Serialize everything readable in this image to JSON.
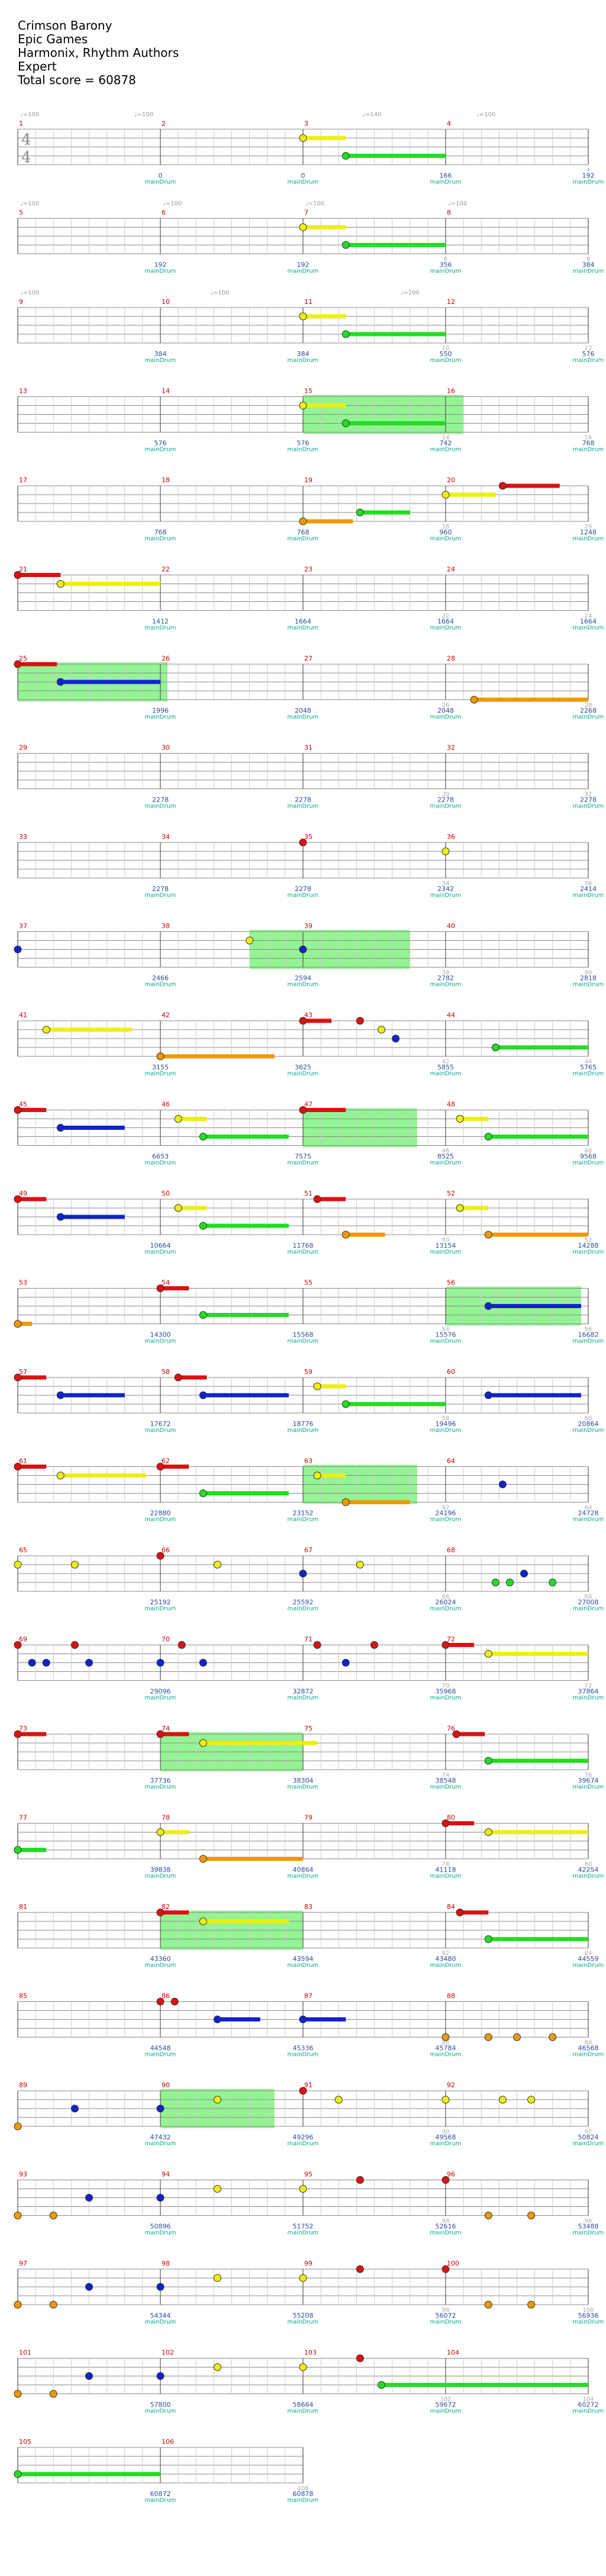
{
  "song": {
    "title": "Crimson Barony",
    "game": "Epic Games",
    "artist": "Harmonix, Rhythm Authors",
    "difficulty": "Expert",
    "total_score_label": "Total score = 60878"
  },
  "time_signature": {
    "top": "4",
    "bottom": "4"
  },
  "colors": {
    "green": "#22dd22",
    "red": "#dd1111",
    "yellow": "#eeee11",
    "blue": "#1122cc",
    "orange": "#ee9900",
    "overdrive": "#66ee66",
    "staff_line": "#888888",
    "beat_line": "#cccccc",
    "measure_number": "#cc0000"
  },
  "legend": {
    "marker_text": "mainDrum"
  },
  "rows": [
    {
      "measures": [
        1,
        2,
        3,
        4
      ],
      "tempos": [
        "♩=100",
        "♩=100",
        "",
        "♩=140",
        "♩=100"
      ],
      "multipliers": [
        "",
        "",
        "",
        "4"
      ],
      "scores": [
        "0",
        "0",
        "166",
        "192"
      ]
    },
    {
      "measures": [
        5,
        6,
        7,
        8
      ],
      "tempos": [
        "♩=100",
        "♩=100",
        "♩=100",
        "♩=100"
      ],
      "multipliers": [
        "",
        "",
        "6",
        "8"
      ],
      "scores": [
        "192",
        "192",
        "356",
        "384"
      ]
    },
    {
      "measures": [
        9,
        10,
        11,
        12
      ],
      "tempos": [
        "♩=100",
        "♩=100",
        "♩=100"
      ],
      "multipliers": [
        "",
        "",
        "10",
        "12"
      ],
      "scores": [
        "384",
        "384",
        "550",
        "576"
      ]
    },
    {
      "measures": [
        13,
        14,
        15,
        16
      ],
      "tempos": [],
      "multipliers": [
        "",
        "",
        "14",
        "16"
      ],
      "scores": [
        "576",
        "576",
        "742",
        "768"
      ]
    },
    {
      "measures": [
        17,
        18,
        19,
        20
      ],
      "tempos": [],
      "multipliers": [
        "",
        "",
        "18",
        "20"
      ],
      "scores": [
        "768",
        "768",
        "960",
        "1248"
      ]
    },
    {
      "measures": [
        21,
        22,
        23,
        24
      ],
      "tempos": [],
      "multipliers": [
        "",
        "",
        "22",
        "24"
      ],
      "scores": [
        "1412",
        "1664",
        "1664",
        "1664"
      ]
    },
    {
      "measures": [
        25,
        26,
        27,
        28
      ],
      "tempos": [],
      "multipliers": [
        "",
        "",
        "26",
        "28"
      ],
      "scores": [
        "1996",
        "2048",
        "2048",
        "2268"
      ]
    },
    {
      "measures": [
        29,
        30,
        31,
        32
      ],
      "tempos": [],
      "multipliers": [
        "",
        "",
        "30",
        "32"
      ],
      "scores": [
        "2278",
        "2278",
        "2278",
        "2278"
      ]
    },
    {
      "measures": [
        33,
        34,
        35,
        36
      ],
      "tempos": [],
      "multipliers": [
        "",
        "",
        "34",
        "36"
      ],
      "scores": [
        "2278",
        "2278",
        "2342",
        "2414"
      ]
    },
    {
      "measures": [
        37,
        38,
        39,
        40
      ],
      "tempos": [],
      "multipliers": [
        "",
        "",
        "38",
        "40"
      ],
      "scores": [
        "2466",
        "2594",
        "2782",
        "2818"
      ]
    },
    {
      "measures": [
        41,
        42,
        43,
        44
      ],
      "tempos": [],
      "multipliers": [
        "",
        "",
        "42",
        "44"
      ],
      "scores": [
        "3155",
        "3625",
        "5855",
        "5765"
      ]
    },
    {
      "measures": [
        45,
        46,
        47,
        48
      ],
      "tempos": [],
      "multipliers": [
        "",
        "",
        "46",
        "48"
      ],
      "scores": [
        "6653",
        "7575",
        "8525",
        "9568"
      ]
    },
    {
      "measures": [
        49,
        50,
        51,
        52
      ],
      "tempos": [],
      "multipliers": [
        "",
        "",
        "50",
        "52"
      ],
      "scores": [
        "10664",
        "11768",
        "13154",
        "14288"
      ]
    },
    {
      "measures": [
        53,
        54,
        55,
        56
      ],
      "tempos": [],
      "multipliers": [
        "",
        "",
        "54",
        "56"
      ],
      "scores": [
        "14300",
        "15568",
        "15576",
        "16682"
      ]
    },
    {
      "measures": [
        57,
        58,
        59,
        60
      ],
      "tempos": [],
      "multipliers": [
        "",
        "",
        "58",
        "60"
      ],
      "scores": [
        "17672",
        "18776",
        "19496",
        "20864"
      ]
    },
    {
      "measures": [
        61,
        62,
        63,
        64
      ],
      "tempos": [],
      "multipliers": [
        "",
        "",
        "62",
        "64"
      ],
      "scores": [
        "22880",
        "23152",
        "24196",
        "24728"
      ]
    },
    {
      "measures": [
        65,
        66,
        67,
        68
      ],
      "tempos": [],
      "multipliers": [
        "",
        "",
        "66",
        "68"
      ],
      "scores": [
        "25192",
        "25592",
        "26024",
        "27008"
      ]
    },
    {
      "measures": [
        69,
        70,
        71,
        72
      ],
      "tempos": [],
      "multipliers": [
        "",
        "",
        "70",
        "72"
      ],
      "scores": [
        "29096",
        "32872",
        "35968",
        "37864"
      ]
    },
    {
      "measures": [
        73,
        74,
        75,
        76
      ],
      "tempos": [],
      "multipliers": [
        "",
        "",
        "74",
        "76"
      ],
      "scores": [
        "37736",
        "38304",
        "38548",
        "39674"
      ]
    },
    {
      "measures": [
        77,
        78,
        79,
        80
      ],
      "tempos": [],
      "multipliers": [
        "",
        "",
        "78",
        "80"
      ],
      "scores": [
        "39838",
        "40864",
        "41118",
        "42254"
      ]
    },
    {
      "measures": [
        81,
        82,
        83,
        84
      ],
      "tempos": [],
      "multipliers": [
        "",
        "",
        "82",
        "84"
      ],
      "scores": [
        "43360",
        "43594",
        "43480",
        "44559"
      ]
    },
    {
      "measures": [
        85,
        86,
        87,
        88
      ],
      "tempos": [],
      "multipliers": [
        "",
        "",
        "86",
        "88"
      ],
      "scores": [
        "44548",
        "45336",
        "45784",
        "46568"
      ]
    },
    {
      "measures": [
        89,
        90,
        91,
        92
      ],
      "tempos": [],
      "multipliers": [
        "",
        "",
        "90",
        "92"
      ],
      "scores": [
        "47432",
        "49296",
        "49568",
        "50824"
      ]
    },
    {
      "measures": [
        93,
        94,
        95,
        96
      ],
      "tempos": [],
      "multipliers": [
        "",
        "",
        "94",
        "96"
      ],
      "scores": [
        "50896",
        "51752",
        "52616",
        "53488"
      ]
    },
    {
      "measures": [
        97,
        98,
        99,
        100
      ],
      "tempos": [],
      "multipliers": [
        "",
        "",
        "98",
        "100"
      ],
      "scores": [
        "54344",
        "55208",
        "56072",
        "56936"
      ]
    },
    {
      "measures": [
        101,
        102,
        103,
        104
      ],
      "tempos": [],
      "multipliers": [
        "",
        "",
        "102",
        "104"
      ],
      "scores": [
        "57800",
        "58664",
        "59672",
        "60272"
      ]
    },
    {
      "measures": [
        105,
        106
      ],
      "tempos": [],
      "multipliers": [
        "",
        "106"
      ],
      "scores": [
        "60872",
        "60878"
      ]
    }
  ]
}
